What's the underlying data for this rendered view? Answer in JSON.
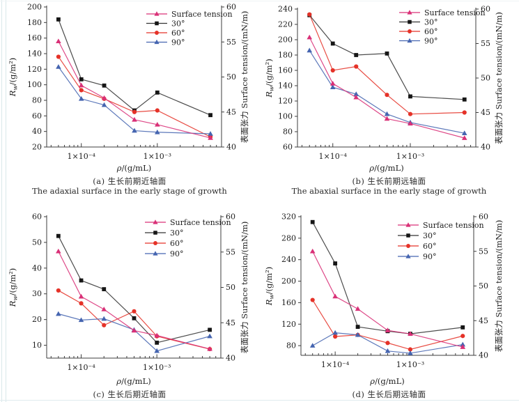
{
  "figure": {
    "description_edge_color": "#d9e8ea"
  },
  "colors": {
    "surface_tension": "#d93077",
    "deg30": "#333333",
    "deg30_marker": "#161616",
    "deg60": "#e53228",
    "deg90": "#4565b0",
    "axis": "#3c3c3c",
    "text": "#1c1c1c"
  },
  "chart_data": {
    "type": "line",
    "x_scale": "log",
    "x_label_var": "ρ",
    "x_label_unit": "/(g/mL)",
    "left_label_var": "R",
    "left_label_sub": "w",
    "left_label_unit": "/(g/m²)",
    "right_label": "表面张力 Surface tension/(mN/m)",
    "x_range": [
      3.5e-05,
      0.007
    ],
    "x_values": [
      5e-05,
      0.0001,
      0.0002,
      0.0005,
      0.001,
      0.005
    ],
    "x_major_ticks": [
      {
        "value": 0.0001,
        "label": "1×10⁻⁴"
      },
      {
        "value": 0.001,
        "label": "1×10⁻³"
      }
    ],
    "x_minor_ticks": [
      4e-05,
      5e-05,
      6e-05,
      7e-05,
      8e-05,
      9e-05,
      0.0002,
      0.0003,
      0.0004,
      0.0005,
      0.0006,
      0.0007,
      0.0008,
      0.0009,
      0.002,
      0.003,
      0.004,
      0.005,
      0.006
    ],
    "legend": {
      "position": "top-right-inside",
      "items": [
        {
          "key": "surface_tension",
          "label": "Surface tension",
          "marker": "triangle"
        },
        {
          "key": "deg30",
          "label": "30°",
          "marker": "square"
        },
        {
          "key": "deg60",
          "label": "60°",
          "marker": "circle"
        },
        {
          "key": "deg90",
          "label": "90°",
          "marker": "triangle"
        }
      ]
    },
    "charts": [
      {
        "id": "a",
        "caption_cn": "(a) 生长前期近轴面",
        "caption_en": "The adaxial surface in the early stage of growth",
        "left_axis": {
          "min": 20,
          "max": 200,
          "ticks": [
            20,
            40,
            60,
            80,
            100,
            120,
            140,
            160,
            180,
            200
          ]
        },
        "right_axis": {
          "min": 40,
          "max": 60,
          "ticks": [
            40,
            45,
            50,
            55,
            60
          ]
        },
        "series": [
          {
            "key": "surface_tension",
            "name": "Surface tension",
            "axis": "right",
            "values": [
              55.1,
              48.8,
              47.0,
              43.9,
              43.2,
              41.3
            ]
          },
          {
            "key": "deg30",
            "name": "30°",
            "axis": "left",
            "values": [
              184,
              107,
              99,
              67,
              90,
              61
            ]
          },
          {
            "key": "deg60",
            "name": "60°",
            "axis": "left",
            "values": [
              136,
              93,
              82,
              65,
              67,
              33
            ]
          },
          {
            "key": "deg90",
            "name": "90°",
            "axis": "left",
            "values": [
              123,
              82,
              74,
              41,
              39,
              37
            ]
          }
        ]
      },
      {
        "id": "b",
        "caption_cn": "(b) 生长前期远轴面",
        "caption_en": "The abaxial surface in the early stage of growth",
        "left_axis": {
          "min": 60,
          "max": 240,
          "ticks": [
            60,
            80,
            100,
            120,
            140,
            160,
            180,
            200,
            220,
            240
          ]
        },
        "right_axis": {
          "min": 40,
          "max": 60,
          "ticks": [
            40,
            45,
            50,
            55,
            60
          ]
        },
        "series": [
          {
            "key": "surface_tension",
            "name": "Surface tension",
            "axis": "right",
            "values": [
              55.9,
              49.2,
              47.2,
              44.1,
              43.4,
              41.3
            ]
          },
          {
            "key": "deg30",
            "name": "30°",
            "axis": "left",
            "values": [
              232,
              195,
              180,
              182,
              126,
              122
            ]
          },
          {
            "key": "deg60",
            "name": "60°",
            "axis": "left",
            "values": [
              233,
              160,
              165,
              128,
              103,
              105
            ]
          },
          {
            "key": "deg90",
            "name": "90°",
            "axis": "left",
            "values": [
              186,
              138,
              129,
              103,
              92,
              78
            ]
          }
        ]
      },
      {
        "id": "c",
        "caption_cn": "(c) 生长后期近轴面",
        "caption_en": "",
        "left_axis": {
          "min": 5,
          "max": 60,
          "ticks": [
            10,
            20,
            30,
            40,
            50,
            60
          ]
        },
        "right_axis": {
          "min": 40,
          "max": 60,
          "ticks": [
            40,
            45,
            50,
            55,
            60
          ]
        },
        "series": [
          {
            "key": "surface_tension",
            "name": "Surface tension",
            "axis": "right",
            "values": [
              55.1,
              48.7,
              46.9,
              43.9,
              43.2,
              41.3
            ]
          },
          {
            "key": "deg30",
            "name": "30°",
            "axis": "left",
            "values": [
              52.5,
              35.2,
              31.8,
              20.5,
              11,
              16
            ]
          },
          {
            "key": "deg60",
            "name": "60°",
            "axis": "left",
            "values": [
              31.3,
              26.3,
              17.8,
              23.2,
              13.5,
              8.5
            ]
          },
          {
            "key": "deg90",
            "name": "90°",
            "axis": "left",
            "values": [
              22.2,
              19.8,
              20.3,
              16,
              7.8,
              13.5
            ]
          }
        ]
      },
      {
        "id": "d",
        "caption_cn": "(d) 生长后期远轴面",
        "caption_en": "",
        "left_axis": {
          "min": 62,
          "max": 320,
          "ticks": [
            80,
            120,
            160,
            200,
            240,
            280,
            320
          ]
        },
        "right_axis": {
          "min": 40,
          "max": 60,
          "ticks": [
            40,
            45,
            50,
            55,
            60
          ]
        },
        "series": [
          {
            "key": "surface_tension",
            "name": "Surface tension",
            "axis": "right",
            "values": [
              55.0,
              48.5,
              46.7,
              43.6,
              43.1,
              41.2
            ]
          },
          {
            "key": "deg30",
            "name": "30°",
            "axis": "left",
            "values": [
              310,
              233,
              115,
              107,
              102,
              114
            ]
          },
          {
            "key": "deg60",
            "name": "60°",
            "axis": "left",
            "values": [
              165,
              97,
              100,
              85,
              73,
              98
            ]
          },
          {
            "key": "deg90",
            "name": "90°",
            "axis": "left",
            "values": [
              80,
              104,
              100,
              70,
              66,
              82
            ]
          }
        ]
      }
    ]
  }
}
